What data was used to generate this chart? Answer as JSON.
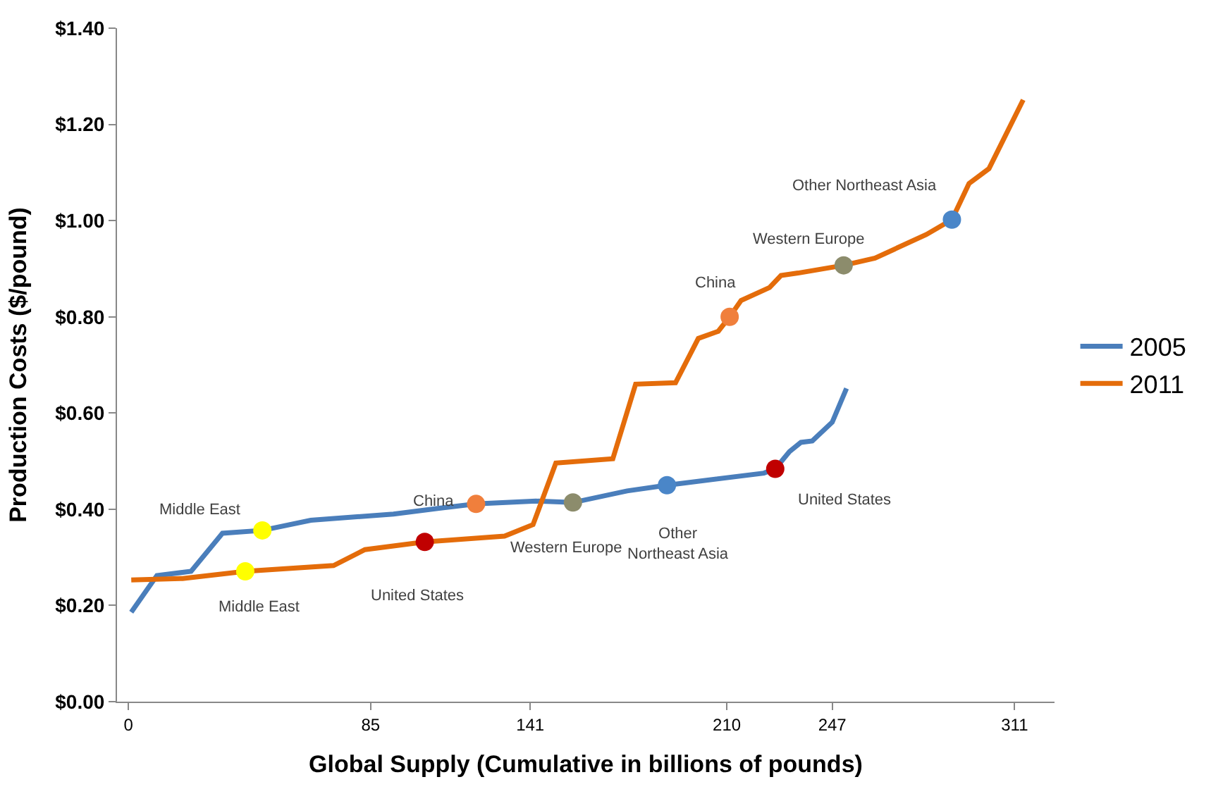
{
  "chart_data": {
    "type": "line",
    "xlabel": "Global Supply (Cumulative in billions of pounds)",
    "ylabel": "Production Costs ($/pound)",
    "xlim": [
      -4,
      325
    ],
    "xticks": [
      0,
      85,
      141,
      210,
      247,
      311
    ],
    "ylim": [
      0,
      1.4
    ],
    "yticks": [
      {
        "value": 0,
        "label": "$0.00"
      },
      {
        "value": 0.2,
        "label": "$0.20"
      },
      {
        "value": 0.4,
        "label": "$0.40"
      },
      {
        "value": 0.6,
        "label": "$0.60"
      },
      {
        "value": 0.8,
        "label": "$0.80"
      },
      {
        "value": 1.0,
        "label": "$1.00"
      },
      {
        "value": 1.2,
        "label": "$1.20"
      },
      {
        "value": 1.4,
        "label": "$1.40"
      }
    ],
    "legend": "right",
    "line_style": "solid",
    "series": [
      {
        "name": "2005",
        "marker": "none",
        "color": "#4a7ebb",
        "x": [
          1,
          10,
          22,
          33,
          47,
          64,
          93,
          109,
          122,
          143,
          156,
          175,
          189,
          223,
          227,
          232,
          236,
          240,
          247,
          252
        ],
        "values": [
          0.186,
          0.262,
          0.271,
          0.35,
          0.356,
          0.377,
          0.39,
          0.402,
          0.411,
          0.417,
          0.414,
          0.438,
          0.45,
          0.475,
          0.484,
          0.52,
          0.539,
          0.542,
          0.581,
          0.651
        ]
      },
      {
        "name": "2011",
        "marker": "none",
        "color": "#e46c0a",
        "x": [
          1,
          19,
          41,
          72,
          83,
          104,
          132,
          142,
          150,
          170,
          178,
          192,
          200,
          207,
          211,
          215,
          225,
          229,
          235,
          251,
          262,
          280,
          289,
          295,
          302,
          314
        ],
        "values": [
          0.253,
          0.256,
          0.271,
          0.283,
          0.316,
          0.332,
          0.344,
          0.368,
          0.496,
          0.505,
          0.66,
          0.663,
          0.755,
          0.77,
          0.8,
          0.834,
          0.861,
          0.886,
          0.891,
          0.907,
          0.922,
          0.971,
          1.002,
          1.077,
          1.108,
          1.251
        ]
      },
      {
        "type": "scatter",
        "marker": "circle",
        "color": "#4a7ebb",
        "colors": [
          "#ffff00",
          "#f07f3c",
          "#8c8c6c",
          "#4a86c8",
          "#c00000"
        ],
        "x": [
          47,
          122,
          156,
          189,
          227
        ],
        "values": [
          0.356,
          0.411,
          0.414,
          0.45,
          0.484
        ]
      },
      {
        "type": "scatter",
        "marker": "circle",
        "color": "#e46c0a",
        "colors": [
          "#ffff00",
          "#c00000",
          "#f07f3c",
          "#8c8c6c",
          "#4a86c8"
        ],
        "x": [
          41,
          104,
          211,
          251,
          289
        ],
        "values": [
          0.271,
          0.332,
          0.8,
          0.907,
          1.002
        ]
      }
    ],
    "annotations": [
      {
        "text": "Middle East",
        "x": 47,
        "y": 0.356
      },
      {
        "text": "China",
        "x": 122,
        "y": 0.411
      },
      {
        "text": "Western Europe",
        "x": 156,
        "y": 0.414
      },
      {
        "text": "Other\nNortheast Asia",
        "x": 189,
        "y": 0.45
      },
      {
        "text": "United States",
        "x": 227,
        "y": 0.484
      },
      {
        "text": "Middle East",
        "x": 41,
        "y": 0.271
      },
      {
        "text": "United States",
        "x": 104,
        "y": 0.332
      },
      {
        "text": "China",
        "x": 211,
        "y": 0.8
      },
      {
        "text": "Western Europe",
        "x": 251,
        "y": 0.907
      },
      {
        "text": "Other Northeast Asia",
        "x": 289,
        "y": 1.002
      }
    ]
  }
}
